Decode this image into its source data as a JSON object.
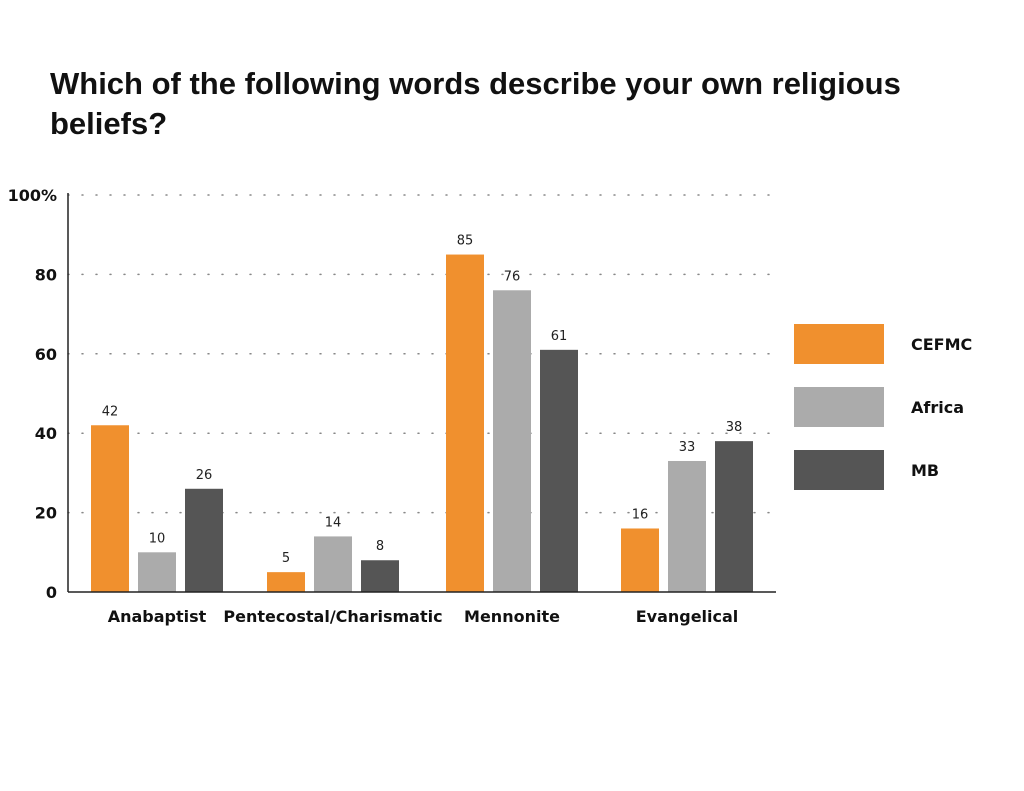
{
  "title": "Which of the following words describe your own religious beliefs?",
  "chart_data": {
    "type": "bar",
    "title": "Which of the following words describe your own religious beliefs?",
    "categories": [
      "Anabaptist",
      "Pentecostal/Charismatic",
      "Mennonite",
      "Evangelical"
    ],
    "series": [
      {
        "name": "CEFMC",
        "color": "#F0902E",
        "values": [
          42,
          5,
          85,
          16
        ]
      },
      {
        "name": "Africa",
        "color": "#ABABAB",
        "values": [
          10,
          14,
          76,
          33
        ]
      },
      {
        "name": "MB",
        "color": "#555555",
        "values": [
          26,
          8,
          61,
          38
        ]
      }
    ],
    "y_ticks": [
      "0",
      "20",
      "40",
      "60",
      "80",
      "100%"
    ],
    "ylim": [
      0,
      100
    ],
    "grid": "dotted horizontal",
    "legend": "right"
  }
}
